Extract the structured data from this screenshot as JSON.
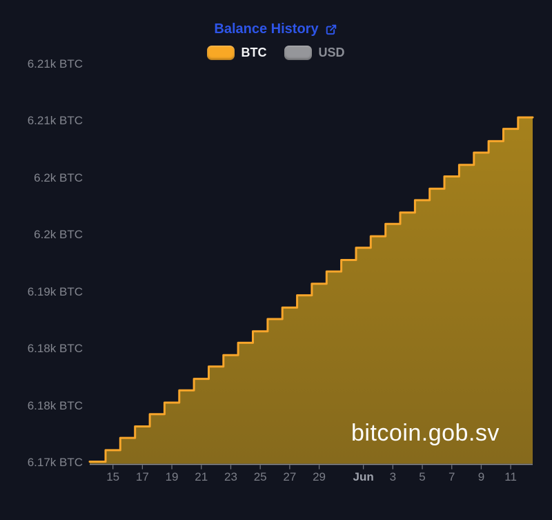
{
  "page": {
    "background": "#11141f"
  },
  "header": {
    "title": "Balance History",
    "title_color": "#2e55e8",
    "external_link_icon": "external-link"
  },
  "legend": {
    "items": [
      {
        "label": "BTC",
        "swatch_color": "#f9a825",
        "label_color": "#f2f3f5",
        "active": true
      },
      {
        "label": "USD",
        "swatch_color": "#95969a",
        "label_color": "#8b8e96",
        "active": false
      }
    ]
  },
  "watermark": "bitcoin.gob.sv",
  "chart_data": {
    "type": "area",
    "step": true,
    "title": "Balance History",
    "series_name": "BTC",
    "ylabel": "",
    "xlabel": "",
    "unit": "BTC",
    "ylim": [
      6170,
      6212
    ],
    "x_dates": [
      "May 14",
      "May 15",
      "May 16",
      "May 17",
      "May 18",
      "May 19",
      "May 20",
      "May 21",
      "May 22",
      "May 23",
      "May 24",
      "May 25",
      "May 26",
      "May 27",
      "May 28",
      "May 29",
      "May 30",
      "May 31",
      "Jun 1",
      "Jun 2",
      "Jun 3",
      "Jun 4",
      "Jun 5",
      "Jun 6",
      "Jun 7",
      "Jun 8",
      "Jun 9",
      "Jun 10",
      "Jun 11",
      "Jun 12"
    ],
    "values": [
      6170.0,
      6171.4,
      6172.9,
      6174.3,
      6175.8,
      6177.2,
      6178.7,
      6180.1,
      6181.6,
      6183.0,
      6184.5,
      6185.9,
      6187.4,
      6188.8,
      6190.3,
      6191.7,
      6193.2,
      6194.6,
      6196.1,
      6197.5,
      6199.0,
      6200.4,
      6201.9,
      6203.3,
      6204.8,
      6206.2,
      6207.7,
      6209.1,
      6210.6,
      6212.0
    ],
    "y_ticks": [
      "6.21k BTC",
      "6.21k BTC",
      "6.2k BTC",
      "6.2k BTC",
      "6.19k BTC",
      "6.18k BTC",
      "6.18k BTC",
      "6.17k BTC"
    ],
    "x_ticks": [
      {
        "label": "15",
        "day_offset": 1
      },
      {
        "label": "17",
        "day_offset": 3
      },
      {
        "label": "19",
        "day_offset": 5
      },
      {
        "label": "21",
        "day_offset": 7
      },
      {
        "label": "23",
        "day_offset": 9
      },
      {
        "label": "25",
        "day_offset": 11
      },
      {
        "label": "27",
        "day_offset": 13
      },
      {
        "label": "29",
        "day_offset": 15
      },
      {
        "label": "Jun",
        "day_offset": 18
      },
      {
        "label": "3",
        "day_offset": 20
      },
      {
        "label": "5",
        "day_offset": 22
      },
      {
        "label": "7",
        "day_offset": 24
      },
      {
        "label": "9",
        "day_offset": 26
      },
      {
        "label": "11",
        "day_offset": 28
      }
    ],
    "grid": false,
    "legend_position": "top",
    "line_color": "#f8a62b",
    "fill": {
      "color": "#f2b91a",
      "opacity_top": 0.66,
      "opacity_bottom": 0.52
    },
    "axis_line_color": "#8b8e96",
    "tick_color": "#6f727c"
  }
}
